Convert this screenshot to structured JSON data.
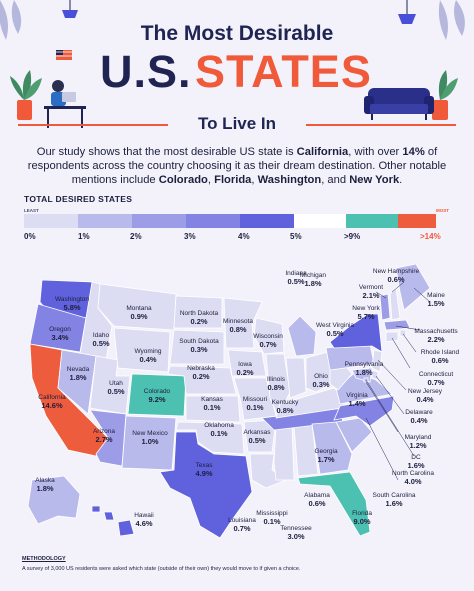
{
  "header": {
    "title_line1": "The Most Desirable",
    "title_us": "U.S.",
    "title_states": "STATES",
    "title_line3": "To Live In"
  },
  "intro": {
    "p1": "Our study shows that the most desirable US state is ",
    "california": "California",
    "p2": ", with over ",
    "pct": "14%",
    "p3": " of respondents across the country choosing it as their dream destination. Other notable mentions include ",
    "colorado": "Colorado",
    "florida": "Florida",
    "washington": "Washington",
    "and": ", and ",
    "newyork": "New York",
    "end": "."
  },
  "legend": {
    "title": "TOTAL DESIRED STATES",
    "least": "LEAST",
    "most": "MOST",
    "ticks": [
      "0%",
      "1%",
      "2%",
      "3%",
      "4%",
      "5%",
      ">9%",
      ">14%"
    ],
    "colors": [
      "#dcdcf3",
      "#b9baec",
      "#9c9de6",
      "#8283e3",
      "#5f61dd",
      "#4cc1b2",
      "#ee5c3e"
    ]
  },
  "chart_data": {
    "type": "table",
    "value_unit": "%",
    "states": [
      {
        "name": "Washington",
        "value": 5.8
      },
      {
        "name": "Oregon",
        "value": 3.4
      },
      {
        "name": "California",
        "value": 14.6
      },
      {
        "name": "Idaho",
        "value": 0.5
      },
      {
        "name": "Nevada",
        "value": 1.8
      },
      {
        "name": "Utah",
        "value": 0.5
      },
      {
        "name": "Arizona",
        "value": 2.7
      },
      {
        "name": "Montana",
        "value": 0.9
      },
      {
        "name": "Wyoming",
        "value": 0.4
      },
      {
        "name": "Colorado",
        "value": 9.2
      },
      {
        "name": "New Mexico",
        "value": 1.0
      },
      {
        "name": "North Dakota",
        "value": 0.2
      },
      {
        "name": "South Dakota",
        "value": 0.3
      },
      {
        "name": "Nebraska",
        "value": 0.2
      },
      {
        "name": "Kansas",
        "value": 0.1
      },
      {
        "name": "Oklahoma",
        "value": 0.1
      },
      {
        "name": "Texas",
        "value": 4.9
      },
      {
        "name": "Minnesota",
        "value": 0.8
      },
      {
        "name": "Iowa",
        "value": 0.2
      },
      {
        "name": "Missouri",
        "value": 0.1
      },
      {
        "name": "Arkansas",
        "value": 0.5
      },
      {
        "name": "Louisiana",
        "value": 0.7
      },
      {
        "name": "Wisconsin",
        "value": 0.7
      },
      {
        "name": "Illinois",
        "value": 0.8
      },
      {
        "name": "Mississippi",
        "value": 0.1
      },
      {
        "name": "Alabama",
        "value": 0.6
      },
      {
        "name": "Tennessee",
        "value": 3.0
      },
      {
        "name": "Kentucky",
        "value": 0.8
      },
      {
        "name": "Indiana",
        "value": 0.5
      },
      {
        "name": "Michigan",
        "value": 1.8
      },
      {
        "name": "Ohio",
        "value": 0.3
      },
      {
        "name": "Georgia",
        "value": 1.7
      },
      {
        "name": "Florida",
        "value": 9.0
      },
      {
        "name": "South Carolina",
        "value": 1.6
      },
      {
        "name": "North Carolina",
        "value": 4.0
      },
      {
        "name": "Virginia",
        "value": 1.4
      },
      {
        "name": "West Virginia",
        "value": 0.5
      },
      {
        "name": "Pennsylvania",
        "value": 1.8
      },
      {
        "name": "New York",
        "value": 5.7
      },
      {
        "name": "Vermont",
        "value": 2.1
      },
      {
        "name": "New Hampshire",
        "value": 0.6
      },
      {
        "name": "Maine",
        "value": 1.5
      },
      {
        "name": "Massachusetts",
        "value": 2.2
      },
      {
        "name": "Rhode Island",
        "value": 0.6
      },
      {
        "name": "Connecticut",
        "value": 0.7
      },
      {
        "name": "New Jersey",
        "value": 0.4
      },
      {
        "name": "Delaware",
        "value": 0.4
      },
      {
        "name": "Maryland",
        "value": 1.2
      },
      {
        "name": "DC",
        "value": 1.6
      },
      {
        "name": "Alaska",
        "value": 1.8
      },
      {
        "name": "Hawaii",
        "value": 4.6
      }
    ]
  },
  "methodology": {
    "title": "METHODOLOGY",
    "text": "A survey of 3,000 US residents were asked which state (outside of their own) they would move to if given a choice."
  }
}
